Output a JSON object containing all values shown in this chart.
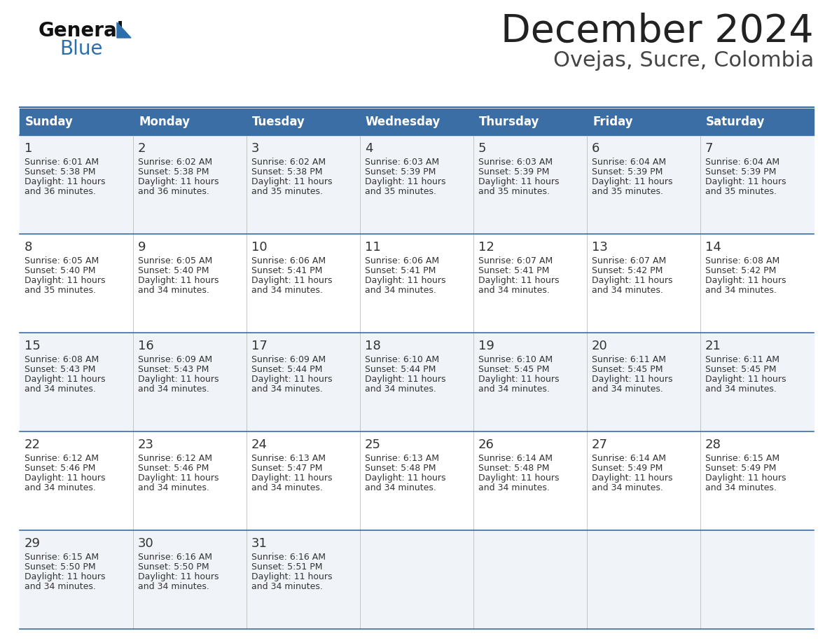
{
  "title": "December 2024",
  "subtitle": "Ovejas, Sucre, Colombia",
  "header_color": "#3A6EA5",
  "header_text_color": "#FFFFFF",
  "background_color": "#FFFFFF",
  "cell_bg_odd": "#F0F4F8",
  "cell_bg_even": "#FFFFFF",
  "day_names": [
    "Sunday",
    "Monday",
    "Tuesday",
    "Wednesday",
    "Thursday",
    "Friday",
    "Saturday"
  ],
  "weeks": [
    [
      {
        "day": "1",
        "sunrise": "6:01 AM",
        "sunset": "5:38 PM",
        "daylight_h": "11 hours",
        "daylight_m": "and 36 minutes."
      },
      {
        "day": "2",
        "sunrise": "6:02 AM",
        "sunset": "5:38 PM",
        "daylight_h": "11 hours",
        "daylight_m": "and 36 minutes."
      },
      {
        "day": "3",
        "sunrise": "6:02 AM",
        "sunset": "5:38 PM",
        "daylight_h": "11 hours",
        "daylight_m": "and 35 minutes."
      },
      {
        "day": "4",
        "sunrise": "6:03 AM",
        "sunset": "5:39 PM",
        "daylight_h": "11 hours",
        "daylight_m": "and 35 minutes."
      },
      {
        "day": "5",
        "sunrise": "6:03 AM",
        "sunset": "5:39 PM",
        "daylight_h": "11 hours",
        "daylight_m": "and 35 minutes."
      },
      {
        "day": "6",
        "sunrise": "6:04 AM",
        "sunset": "5:39 PM",
        "daylight_h": "11 hours",
        "daylight_m": "and 35 minutes."
      },
      {
        "day": "7",
        "sunrise": "6:04 AM",
        "sunset": "5:39 PM",
        "daylight_h": "11 hours",
        "daylight_m": "and 35 minutes."
      }
    ],
    [
      {
        "day": "8",
        "sunrise": "6:05 AM",
        "sunset": "5:40 PM",
        "daylight_h": "11 hours",
        "daylight_m": "and 35 minutes."
      },
      {
        "day": "9",
        "sunrise": "6:05 AM",
        "sunset": "5:40 PM",
        "daylight_h": "11 hours",
        "daylight_m": "and 34 minutes."
      },
      {
        "day": "10",
        "sunrise": "6:06 AM",
        "sunset": "5:41 PM",
        "daylight_h": "11 hours",
        "daylight_m": "and 34 minutes."
      },
      {
        "day": "11",
        "sunrise": "6:06 AM",
        "sunset": "5:41 PM",
        "daylight_h": "11 hours",
        "daylight_m": "and 34 minutes."
      },
      {
        "day": "12",
        "sunrise": "6:07 AM",
        "sunset": "5:41 PM",
        "daylight_h": "11 hours",
        "daylight_m": "and 34 minutes."
      },
      {
        "day": "13",
        "sunrise": "6:07 AM",
        "sunset": "5:42 PM",
        "daylight_h": "11 hours",
        "daylight_m": "and 34 minutes."
      },
      {
        "day": "14",
        "sunrise": "6:08 AM",
        "sunset": "5:42 PM",
        "daylight_h": "11 hours",
        "daylight_m": "and 34 minutes."
      }
    ],
    [
      {
        "day": "15",
        "sunrise": "6:08 AM",
        "sunset": "5:43 PM",
        "daylight_h": "11 hours",
        "daylight_m": "and 34 minutes."
      },
      {
        "day": "16",
        "sunrise": "6:09 AM",
        "sunset": "5:43 PM",
        "daylight_h": "11 hours",
        "daylight_m": "and 34 minutes."
      },
      {
        "day": "17",
        "sunrise": "6:09 AM",
        "sunset": "5:44 PM",
        "daylight_h": "11 hours",
        "daylight_m": "and 34 minutes."
      },
      {
        "day": "18",
        "sunrise": "6:10 AM",
        "sunset": "5:44 PM",
        "daylight_h": "11 hours",
        "daylight_m": "and 34 minutes."
      },
      {
        "day": "19",
        "sunrise": "6:10 AM",
        "sunset": "5:45 PM",
        "daylight_h": "11 hours",
        "daylight_m": "and 34 minutes."
      },
      {
        "day": "20",
        "sunrise": "6:11 AM",
        "sunset": "5:45 PM",
        "daylight_h": "11 hours",
        "daylight_m": "and 34 minutes."
      },
      {
        "day": "21",
        "sunrise": "6:11 AM",
        "sunset": "5:45 PM",
        "daylight_h": "11 hours",
        "daylight_m": "and 34 minutes."
      }
    ],
    [
      {
        "day": "22",
        "sunrise": "6:12 AM",
        "sunset": "5:46 PM",
        "daylight_h": "11 hours",
        "daylight_m": "and 34 minutes."
      },
      {
        "day": "23",
        "sunrise": "6:12 AM",
        "sunset": "5:46 PM",
        "daylight_h": "11 hours",
        "daylight_m": "and 34 minutes."
      },
      {
        "day": "24",
        "sunrise": "6:13 AM",
        "sunset": "5:47 PM",
        "daylight_h": "11 hours",
        "daylight_m": "and 34 minutes."
      },
      {
        "day": "25",
        "sunrise": "6:13 AM",
        "sunset": "5:48 PM",
        "daylight_h": "11 hours",
        "daylight_m": "and 34 minutes."
      },
      {
        "day": "26",
        "sunrise": "6:14 AM",
        "sunset": "5:48 PM",
        "daylight_h": "11 hours",
        "daylight_m": "and 34 minutes."
      },
      {
        "day": "27",
        "sunrise": "6:14 AM",
        "sunset": "5:49 PM",
        "daylight_h": "11 hours",
        "daylight_m": "and 34 minutes."
      },
      {
        "day": "28",
        "sunrise": "6:15 AM",
        "sunset": "5:49 PM",
        "daylight_h": "11 hours",
        "daylight_m": "and 34 minutes."
      }
    ],
    [
      {
        "day": "29",
        "sunrise": "6:15 AM",
        "sunset": "5:50 PM",
        "daylight_h": "11 hours",
        "daylight_m": "and 34 minutes."
      },
      {
        "day": "30",
        "sunrise": "6:16 AM",
        "sunset": "5:50 PM",
        "daylight_h": "11 hours",
        "daylight_m": "and 34 minutes."
      },
      {
        "day": "31",
        "sunrise": "6:16 AM",
        "sunset": "5:51 PM",
        "daylight_h": "11 hours",
        "daylight_m": "and 34 minutes."
      },
      null,
      null,
      null,
      null
    ]
  ],
  "line_color": "#3A6EA5",
  "cell_text_color": "#333333",
  "title_color": "#222222",
  "subtitle_color": "#444444",
  "logo_general_color": "#111111",
  "logo_blue_color": "#2C6FAC",
  "logo_tri_color": "#2C6FAC"
}
